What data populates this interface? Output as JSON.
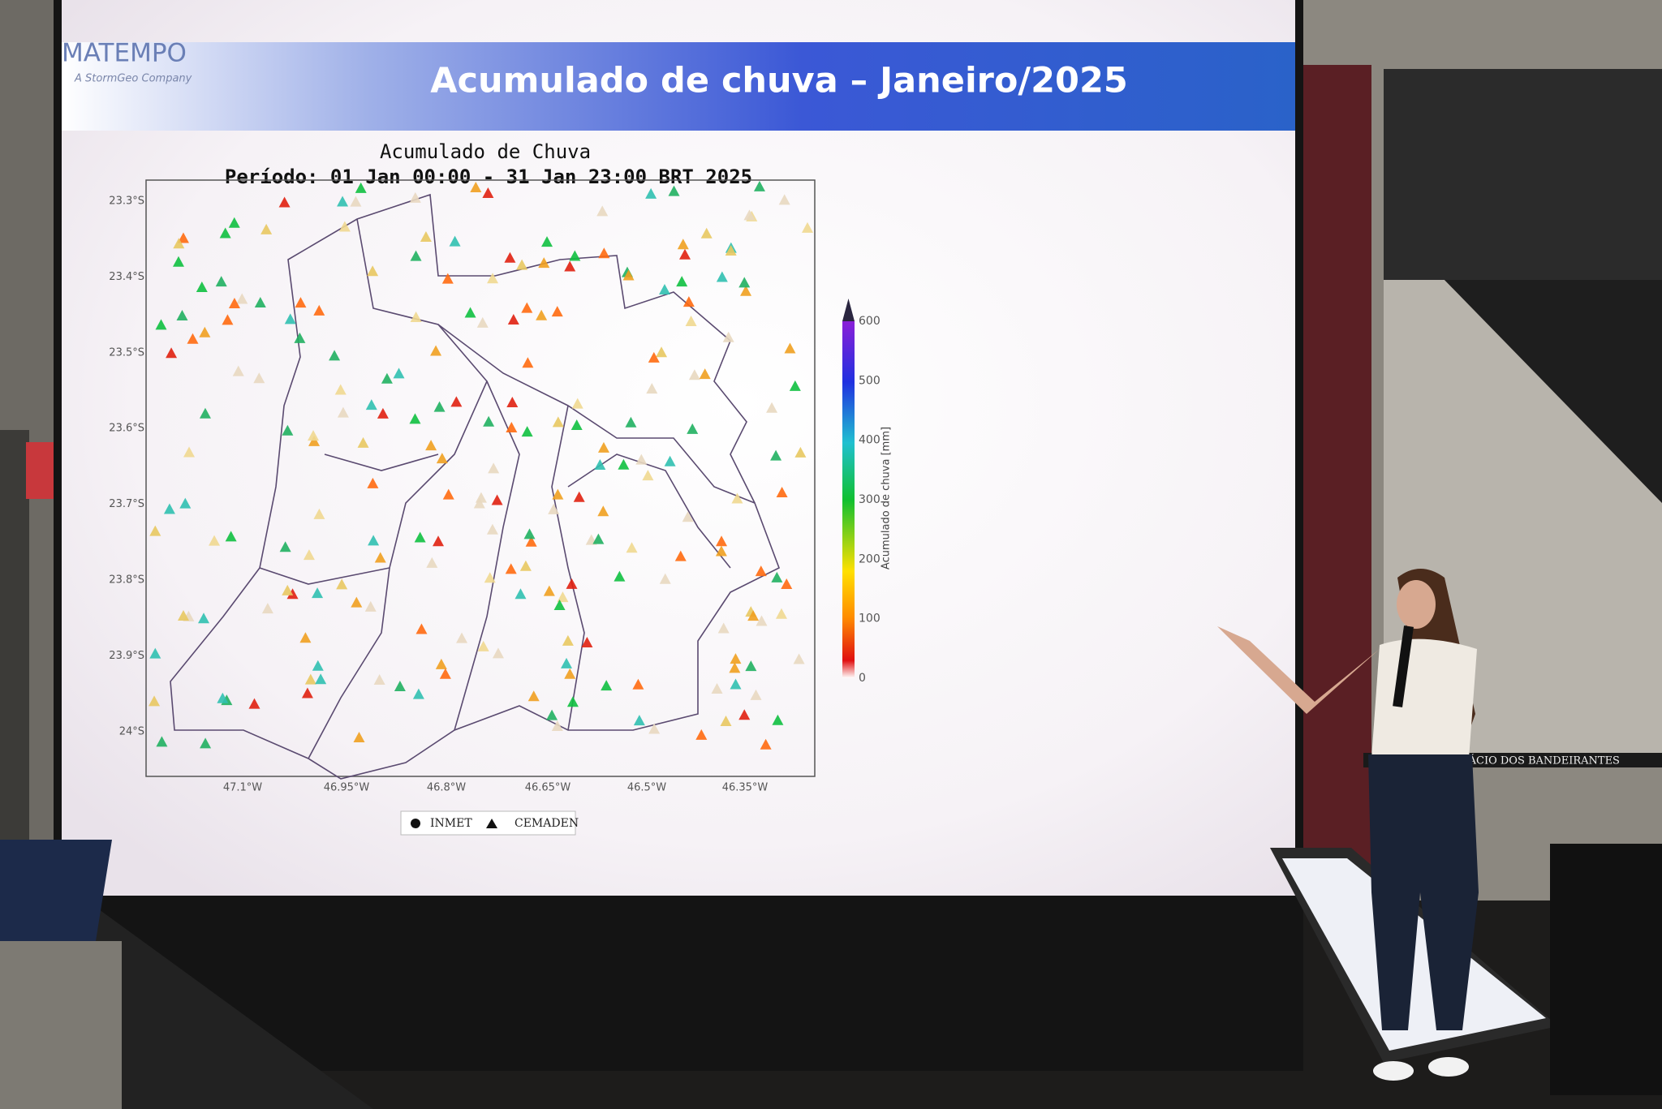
{
  "slide": {
    "logo": "MATEMPO",
    "logo_sub": "A StormGeo Company",
    "title": "Acumulado de chuva – Janeiro/2025"
  },
  "map": {
    "title": "Acumulado de Chuva",
    "subtitle": "Período: 01 Jan 00:00 - 31 Jan 23:00 BRT 2025",
    "lat_ticks": [
      "23.3°S",
      "23.4°S",
      "23.5°S",
      "23.6°S",
      "23.7°S",
      "23.8°S",
      "23.9°S",
      "24°S"
    ],
    "lon_ticks": [
      "47.1°W",
      "46.95°W",
      "46.8°W",
      "46.65°W",
      "46.5°W",
      "46.35°W"
    ],
    "colorbar": {
      "label": "Acumulado de chuva [mm]",
      "ticks": [
        0,
        100,
        200,
        300,
        400,
        500,
        600
      ]
    },
    "legend": [
      "INMET",
      "CEMADEN"
    ]
  },
  "room": {
    "sign": "PALÁCIO DOS BANDEIRANTES"
  }
}
